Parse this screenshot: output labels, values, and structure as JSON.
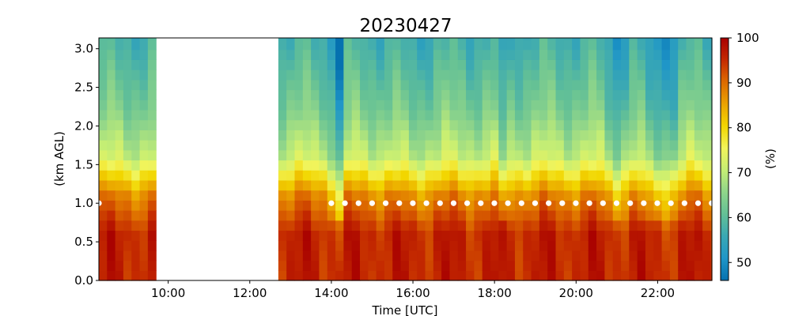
{
  "chart_data": {
    "type": "heatmap",
    "title": "20230427",
    "xlabel": "Time [UTC]",
    "ylabel": "(km AGL)",
    "colorbar_label": "(%)",
    "xlim": [
      8.3,
      23.33
    ],
    "ylim": [
      0.0,
      3.14
    ],
    "x_ticks": [
      10,
      12,
      14,
      16,
      18,
      20,
      22
    ],
    "x_tick_labels": [
      "10:00",
      "12:00",
      "14:00",
      "16:00",
      "18:00",
      "20:00",
      "22:00"
    ],
    "y_ticks": [
      0.0,
      0.5,
      1.0,
      1.5,
      2.0,
      2.5,
      3.0
    ],
    "y_tick_labels": [
      "0.0",
      "0.5",
      "1.0",
      "1.5",
      "2.0",
      "2.5",
      "3.0"
    ],
    "color_range": [
      46,
      100
    ],
    "colorbar_ticks": [
      50,
      60,
      70,
      80,
      90,
      100
    ],
    "colorbar_tick_labels": [
      "50",
      "60",
      "70",
      "80",
      "90",
      "100"
    ],
    "colormap": [
      "#0571b0",
      "#1f96c8",
      "#3aa8b4",
      "#63c096",
      "#8fd58a",
      "#c5ee74",
      "#f2f45a",
      "#f2d600",
      "#eaa300",
      "#dd6b00",
      "#c42a00",
      "#a80000"
    ],
    "missing_intervals": [
      [
        9.75,
        12.6
      ]
    ],
    "profile_shape": "relative humidity decreasing with height; near-saturated (90-100%) below 1 km, 65-75% near 1.5 km, 55-65% near 3 km; very dry column (~46%) near 14:10 and drier bands near 18:15, 21:00 and 22:00",
    "marker_series": {
      "name": "",
      "y": 1.0,
      "x_start": 14.0,
      "x_end": 23.33,
      "step_hours": 0.333,
      "x_extra": [
        8.3
      ],
      "color": "#ffffff"
    }
  }
}
